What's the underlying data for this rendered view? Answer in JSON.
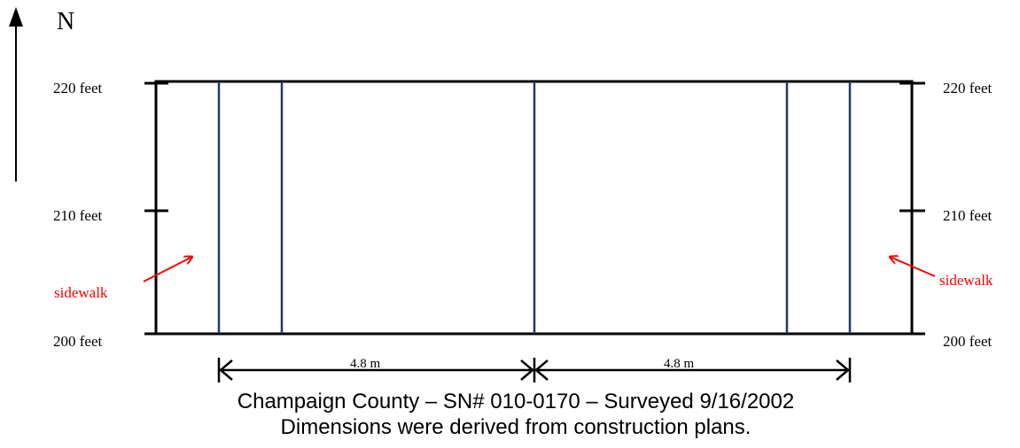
{
  "compass": {
    "label": "N"
  },
  "elevation_labels": {
    "top": "220 feet",
    "middle": "210 feet",
    "bottom": "200 feet"
  },
  "sidewalk_label": "sidewalk",
  "dimensions": {
    "left_span": "4.8 m",
    "right_span": "4.8 m"
  },
  "caption": {
    "line1": "Champaign County – SN# 010-0170 – Surveyed 9/16/2002",
    "line2": "Dimensions were derived from construction plans."
  },
  "colors": {
    "outline": "#000000",
    "girder_lines": "#1f3a6e",
    "annotation": "#ff0000"
  }
}
